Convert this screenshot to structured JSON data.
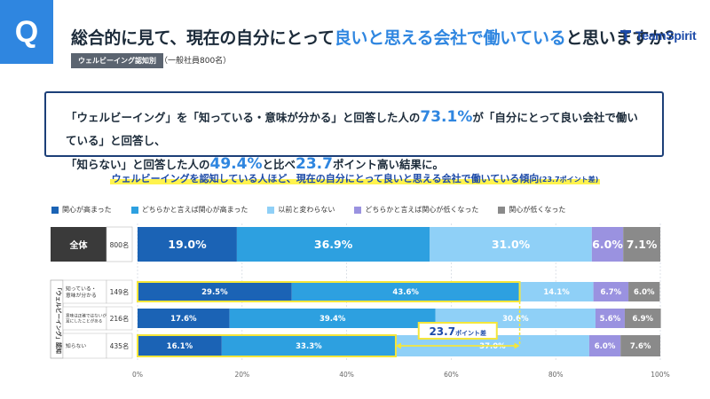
{
  "header": {
    "badge": "Q",
    "question_pre": "総合的に見て、現在の自分にとって",
    "question_hl": "良いと思える会社で働いている",
    "question_post": "と思いますか？",
    "tag": "ウェルビーイング認知別",
    "tag_note": "（一般社員800名）",
    "logo": "TeamSpirit"
  },
  "summary": {
    "line1_a": "「ウェルビーイング」を「知っている・意味が分かる」と回答した人の",
    "line1_big": "73.1%",
    "line1_b": "が「自分にとって良い会社で働いている」と回答し、",
    "line2_a": "「知らない」と回答した人の",
    "line2_big1": "49.4%",
    "line2_b": "と比べ",
    "line2_big2": "23.7",
    "line2_c": "ポイント高い結果に。"
  },
  "subtitle": {
    "main": "ウェルビーイングを認知している人ほど、現在の自分にとって良いと思える会社で働いている傾向",
    "small": "(23.7ポイント差)"
  },
  "chart_data": {
    "type": "bar",
    "orientation": "horizontal",
    "stacked": true,
    "percent_stacked": true,
    "group_label": "「ウェルビーイング」認知",
    "rows": [
      {
        "label": "全体",
        "n": "800名",
        "values": [
          19.0,
          36.9,
          31.0,
          6.0,
          7.1
        ],
        "labels": [
          "19.0%",
          "36.9%",
          "31.0%",
          "6.0%",
          "7.1%"
        ]
      },
      {
        "label": "知っている・意味が分かる",
        "n": "149名",
        "values": [
          29.5,
          43.6,
          14.1,
          6.7,
          6.0
        ],
        "labels": [
          "29.5%",
          "43.6%",
          "14.1%",
          "6.7%",
          "6.0%"
        ]
      },
      {
        "label": "意味は正確ではないが耳にしたことがある",
        "n": "216名",
        "values": [
          17.6,
          39.4,
          30.6,
          5.6,
          6.9
        ],
        "labels": [
          "17.6%",
          "39.4%",
          "30.6%",
          "5.6%",
          "6.9%"
        ]
      },
      {
        "label": "知らない",
        "n": "435名",
        "values": [
          16.1,
          33.3,
          37.0,
          6.0,
          7.6
        ],
        "labels": [
          "16.1%",
          "33.3%",
          "37.0%",
          "6.0%",
          "7.6%"
        ]
      }
    ],
    "series": [
      {
        "name": "関心が高まった",
        "color": "#1b63b5"
      },
      {
        "name": "どちらかと言えば関心が高まった",
        "color": "#2da0e0"
      },
      {
        "name": "以前と変わらない",
        "color": "#8fd0f7"
      },
      {
        "name": "どちらかと言えば関心が低くなった",
        "color": "#9a92e0"
      },
      {
        "name": "関心が低くなった",
        "color": "#8a8a8a"
      }
    ],
    "xlim": [
      0,
      100
    ],
    "xticks": [
      "0%",
      "20%",
      "40%",
      "60%",
      "80%",
      "100%"
    ],
    "annotation": {
      "text_big": "23.7",
      "text_small": "ポイント差",
      "from_row": 3,
      "to_row": 1
    }
  }
}
